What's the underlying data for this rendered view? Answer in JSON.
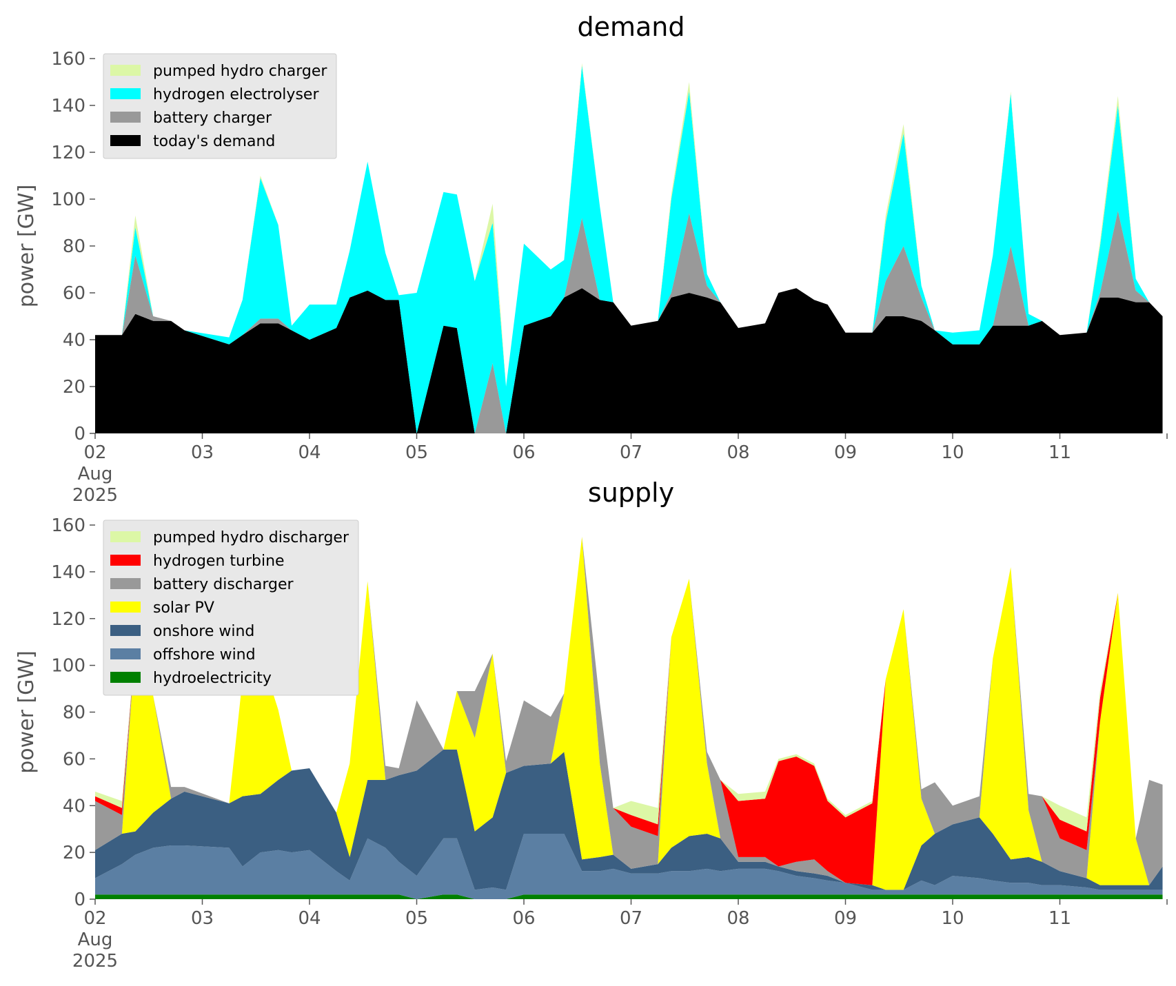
{
  "chart_data": [
    {
      "type": "area",
      "title": "demand",
      "xlabel": "",
      "ylabel": "power [GW]",
      "ylim": [
        0,
        160
      ],
      "yticks": [
        0,
        20,
        40,
        60,
        80,
        100,
        120,
        140,
        160
      ],
      "xlim": [
        "2025-08-02",
        "2025-08-12"
      ],
      "xtick_labels": [
        "02\nAug\n2025",
        "03",
        "04",
        "05",
        "06",
        "07",
        "08",
        "09",
        "10",
        "11"
      ],
      "legend_position": "top-left",
      "stacked": true,
      "x": [
        "2025-08-02",
        "2025-08-02 06:00",
        "2025-08-02 09:00",
        "2025-08-02 13:00",
        "2025-08-02 17:00",
        "2025-08-02 20:00",
        "2025-08-03 06:00",
        "2025-08-03 09:00",
        "2025-08-03 13:00",
        "2025-08-03 17:00",
        "2025-08-03 20:00",
        "2025-08-04 00:00",
        "2025-08-04 06:00",
        "2025-08-04 09:00",
        "2025-08-04 13:00",
        "2025-08-04 17:00",
        "2025-08-04 20:00",
        "2025-08-05 00:00",
        "2025-08-05 06:00",
        "2025-08-05 09:00",
        "2025-08-05 13:00",
        "2025-08-05 17:00",
        "2025-08-05 20:00",
        "2025-08-06 00:00",
        "2025-08-06 06:00",
        "2025-08-06 09:00",
        "2025-08-06 13:00",
        "2025-08-06 17:00",
        "2025-08-06 20:00",
        "2025-08-07 00:00",
        "2025-08-07 06:00",
        "2025-08-07 09:00",
        "2025-08-07 13:00",
        "2025-08-07 17:00",
        "2025-08-07 20:00",
        "2025-08-08 00:00",
        "2025-08-08 06:00",
        "2025-08-08 09:00",
        "2025-08-08 13:00",
        "2025-08-08 17:00",
        "2025-08-08 20:00",
        "2025-08-09 00:00",
        "2025-08-09 06:00",
        "2025-08-09 09:00",
        "2025-08-09 13:00",
        "2025-08-09 17:00",
        "2025-08-09 20:00",
        "2025-08-10 00:00",
        "2025-08-10 06:00",
        "2025-08-10 09:00",
        "2025-08-10 13:00",
        "2025-08-10 17:00",
        "2025-08-10 20:00",
        "2025-08-11 00:00",
        "2025-08-11 06:00",
        "2025-08-11 09:00",
        "2025-08-11 13:00",
        "2025-08-11 17:00",
        "2025-08-11 20:00",
        "2025-08-11 23:00"
      ],
      "series": [
        {
          "name": "today's demand",
          "color": "#000000",
          "values": [
            42,
            42,
            51,
            48,
            48,
            44,
            38,
            42,
            47,
            47,
            44,
            40,
            45,
            58,
            61,
            57,
            57,
            0,
            46,
            45,
            0,
            0,
            0,
            46,
            50,
            58,
            62,
            57,
            56,
            46,
            48,
            58,
            60,
            58,
            56,
            45,
            47,
            60,
            62,
            57,
            55,
            43,
            43,
            50,
            50,
            48,
            44,
            38,
            38,
            46,
            46,
            46,
            48,
            42,
            43,
            58,
            58,
            56,
            56,
            50
          ]
        },
        {
          "name": "battery charger",
          "color": "#999999",
          "values": [
            0,
            0,
            25,
            2,
            0,
            0,
            0,
            0,
            2,
            2,
            0,
            0,
            0,
            0,
            0,
            0,
            0,
            0,
            0,
            0,
            0,
            30,
            0,
            0,
            0,
            0,
            30,
            0,
            0,
            0,
            0,
            2,
            34,
            5,
            0,
            0,
            0,
            0,
            0,
            0,
            0,
            0,
            0,
            15,
            30,
            10,
            0,
            0,
            0,
            0,
            34,
            0,
            0,
            0,
            0,
            2,
            37,
            5,
            0,
            0
          ]
        },
        {
          "name": "hydrogen electrolyser",
          "color": "#00ffff",
          "values": [
            0,
            0,
            12,
            0,
            0,
            0,
            3,
            15,
            60,
            40,
            2,
            15,
            10,
            20,
            55,
            20,
            2,
            60,
            57,
            57,
            65,
            60,
            20,
            35,
            20,
            16,
            65,
            40,
            0,
            0,
            0,
            40,
            52,
            5,
            0,
            0,
            0,
            0,
            0,
            0,
            0,
            0,
            0,
            25,
            48,
            5,
            0,
            5,
            6,
            30,
            65,
            5,
            0,
            0,
            0,
            20,
            45,
            5,
            0,
            0
          ]
        },
        {
          "name": "pumped hydro charger",
          "color": "#dcf7a6",
          "values": [
            0,
            0,
            5,
            0,
            0,
            0,
            0,
            0,
            1,
            0,
            0,
            0,
            0,
            0,
            0,
            0,
            0,
            0,
            0,
            0,
            0,
            8,
            0,
            0,
            0,
            0,
            1,
            0,
            0,
            0,
            0,
            2,
            4,
            0,
            0,
            0,
            0,
            0,
            0,
            0,
            0,
            0,
            0,
            3,
            4,
            0,
            0,
            0,
            0,
            0,
            1,
            0,
            0,
            0,
            0,
            2,
            4,
            0,
            0,
            0
          ]
        }
      ],
      "legend": [
        "pumped hydro charger",
        "hydrogen electrolyser",
        "battery charger",
        "today's demand"
      ]
    },
    {
      "type": "area",
      "title": "supply",
      "xlabel": "",
      "ylabel": "power [GW]",
      "ylim": [
        0,
        160
      ],
      "yticks": [
        0,
        20,
        40,
        60,
        80,
        100,
        120,
        140,
        160
      ],
      "xlim": [
        "2025-08-02",
        "2025-08-12"
      ],
      "xtick_labels": [
        "02\nAug\n2025",
        "03",
        "04",
        "05",
        "06",
        "07",
        "08",
        "09",
        "10",
        "11"
      ],
      "legend_position": "top-left",
      "stacked": true,
      "x": [
        "2025-08-02",
        "2025-08-02 06:00",
        "2025-08-02 09:00",
        "2025-08-02 13:00",
        "2025-08-02 17:00",
        "2025-08-02 20:00",
        "2025-08-03 06:00",
        "2025-08-03 09:00",
        "2025-08-03 13:00",
        "2025-08-03 17:00",
        "2025-08-03 20:00",
        "2025-08-04 00:00",
        "2025-08-04 06:00",
        "2025-08-04 09:00",
        "2025-08-04 13:00",
        "2025-08-04 17:00",
        "2025-08-04 20:00",
        "2025-08-05 00:00",
        "2025-08-05 06:00",
        "2025-08-05 09:00",
        "2025-08-05 13:00",
        "2025-08-05 17:00",
        "2025-08-05 20:00",
        "2025-08-06 00:00",
        "2025-08-06 06:00",
        "2025-08-06 09:00",
        "2025-08-06 13:00",
        "2025-08-06 17:00",
        "2025-08-06 20:00",
        "2025-08-07 00:00",
        "2025-08-07 06:00",
        "2025-08-07 09:00",
        "2025-08-07 13:00",
        "2025-08-07 17:00",
        "2025-08-07 20:00",
        "2025-08-08 00:00",
        "2025-08-08 06:00",
        "2025-08-08 09:00",
        "2025-08-08 13:00",
        "2025-08-08 17:00",
        "2025-08-08 20:00",
        "2025-08-09 00:00",
        "2025-08-09 06:00",
        "2025-08-09 09:00",
        "2025-08-09 13:00",
        "2025-08-09 17:00",
        "2025-08-09 20:00",
        "2025-08-10 00:00",
        "2025-08-10 06:00",
        "2025-08-10 09:00",
        "2025-08-10 13:00",
        "2025-08-10 17:00",
        "2025-08-10 20:00",
        "2025-08-11 00:00",
        "2025-08-11 06:00",
        "2025-08-11 09:00",
        "2025-08-11 13:00",
        "2025-08-11 17:00",
        "2025-08-11 20:00",
        "2025-08-11 23:00"
      ],
      "series": [
        {
          "name": "hydroelectricity",
          "color": "#008000",
          "values": [
            2,
            2,
            2,
            2,
            2,
            2,
            2,
            2,
            2,
            2,
            2,
            2,
            2,
            2,
            2,
            2,
            2,
            0,
            2,
            2,
            0,
            0,
            0,
            2,
            2,
            2,
            2,
            2,
            2,
            2,
            2,
            2,
            2,
            2,
            2,
            2,
            2,
            2,
            2,
            2,
            2,
            2,
            2,
            2,
            2,
            2,
            2,
            2,
            2,
            2,
            2,
            2,
            2,
            2,
            2,
            2,
            2,
            2,
            2,
            2
          ]
        },
        {
          "name": "offshore wind",
          "color": "#5b7fa3",
          "values": [
            7,
            13,
            17,
            20,
            21,
            21,
            20,
            12,
            18,
            19,
            18,
            19,
            10,
            6,
            24,
            20,
            14,
            10,
            24,
            24,
            4,
            5,
            4,
            26,
            26,
            26,
            10,
            10,
            11,
            9,
            9,
            10,
            10,
            11,
            10,
            11,
            11,
            10,
            8,
            7,
            6,
            5,
            2,
            2,
            2,
            6,
            4,
            8,
            7,
            6,
            5,
            5,
            4,
            4,
            3,
            2,
            2,
            2,
            2,
            2
          ]
        },
        {
          "name": "onshore wind",
          "color": "#3b5f82",
          "values": [
            12,
            13,
            10,
            15,
            20,
            23,
            19,
            30,
            25,
            30,
            35,
            35,
            25,
            10,
            25,
            29,
            37,
            45,
            38,
            38,
            25,
            30,
            50,
            29,
            30,
            35,
            5,
            6,
            6,
            2,
            4,
            10,
            15,
            15,
            14,
            3,
            3,
            2,
            2,
            2,
            2,
            0,
            2,
            0,
            0,
            15,
            22,
            22,
            26,
            20,
            10,
            11,
            10,
            6,
            4,
            2,
            2,
            2,
            2,
            10
          ]
        },
        {
          "name": "solar PV",
          "color": "#ffff00",
          "values": [
            0,
            0,
            80,
            50,
            0,
            0,
            0,
            50,
            60,
            30,
            0,
            0,
            0,
            40,
            85,
            0,
            0,
            0,
            0,
            25,
            40,
            70,
            0,
            0,
            0,
            25,
            138,
            40,
            0,
            0,
            0,
            90,
            110,
            30,
            0,
            0,
            0,
            0,
            0,
            0,
            0,
            0,
            0,
            90,
            120,
            20,
            0,
            0,
            0,
            75,
            125,
            20,
            0,
            0,
            0,
            70,
            125,
            20,
            0,
            0
          ]
        },
        {
          "name": "battery discharger",
          "color": "#999999",
          "values": [
            21,
            8,
            0,
            0,
            5,
            2,
            0,
            0,
            0,
            0,
            0,
            0,
            0,
            0,
            0,
            6,
            3,
            30,
            0,
            0,
            20,
            0,
            5,
            28,
            20,
            0,
            0,
            26,
            20,
            18,
            12,
            0,
            0,
            5,
            25,
            2,
            2,
            0,
            4,
            6,
            2,
            0,
            0,
            0,
            0,
            4,
            22,
            8,
            9,
            0,
            0,
            7,
            28,
            14,
            12,
            0,
            0,
            0,
            45,
            35
          ]
        },
        {
          "name": "hydrogen turbine",
          "color": "#ff0000",
          "values": [
            2,
            3,
            0,
            0,
            0,
            0,
            0,
            0,
            0,
            0,
            0,
            0,
            0,
            0,
            0,
            0,
            0,
            0,
            0,
            0,
            0,
            0,
            0,
            0,
            0,
            0,
            0,
            0,
            0,
            5,
            5,
            0,
            0,
            0,
            0,
            24,
            25,
            45,
            45,
            40,
            30,
            28,
            35,
            0,
            0,
            0,
            0,
            0,
            0,
            0,
            0,
            0,
            0,
            8,
            8,
            10,
            0,
            0,
            0,
            0
          ]
        },
        {
          "name": "pumped hydro discharger",
          "color": "#dcf7a6",
          "values": [
            2,
            3,
            0,
            0,
            0,
            0,
            0,
            0,
            0,
            0,
            0,
            0,
            0,
            0,
            0,
            0,
            0,
            0,
            0,
            0,
            0,
            0,
            0,
            0,
            0,
            0,
            0,
            0,
            0,
            6,
            7,
            0,
            0,
            0,
            0,
            3,
            3,
            1,
            1,
            1,
            1,
            1,
            1,
            0,
            0,
            0,
            0,
            0,
            0,
            0,
            0,
            0,
            0,
            6,
            6,
            3,
            0,
            0,
            0,
            0
          ]
        }
      ],
      "legend": [
        "pumped hydro discharger",
        "hydrogen turbine",
        "battery discharger",
        "solar PV",
        "onshore wind",
        "offshore wind",
        "hydroelectricity"
      ]
    }
  ]
}
